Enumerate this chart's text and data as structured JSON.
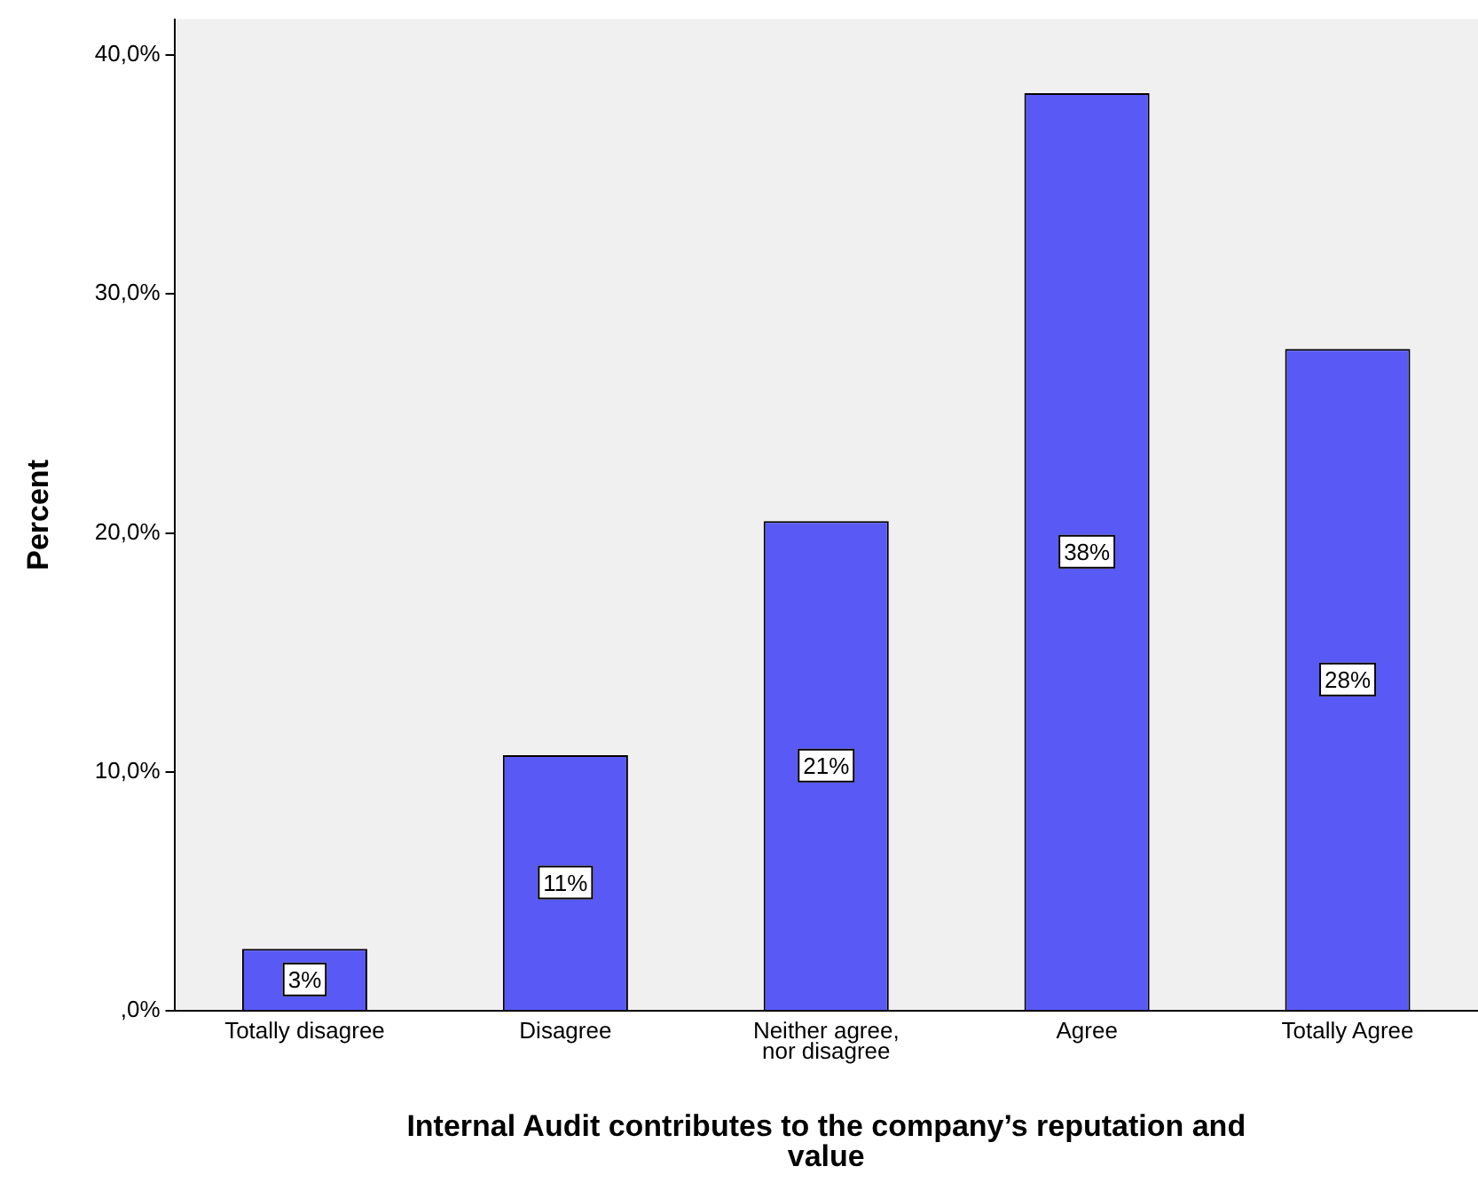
{
  "chart_data": {
    "type": "bar",
    "xlabel": "Internal Audit contributes to the company’s reputation and value",
    "ylabel": "Percent",
    "categories": [
      "Totally disagree",
      "Disagree",
      "Neither agree, nor disagree",
      "Agree",
      "Totally Agree"
    ],
    "values": [
      2.6,
      10.7,
      20.5,
      38.4,
      27.7
    ],
    "color": "#5959f5",
    "value_labels": [
      "3%",
      "11%",
      "21%",
      "38%",
      "28%"
    ],
    "ylim": [
      0,
      41.5
    ],
    "yticks": [
      {
        "value": 0,
        "label": ",0%"
      },
      {
        "value": 10,
        "label": "10,0%"
      },
      {
        "value": 20,
        "label": "20,0%"
      },
      {
        "value": 30,
        "label": "30,0%"
      },
      {
        "value": 40,
        "label": "40,0%"
      }
    ],
    "grid": false,
    "legend": false
  }
}
